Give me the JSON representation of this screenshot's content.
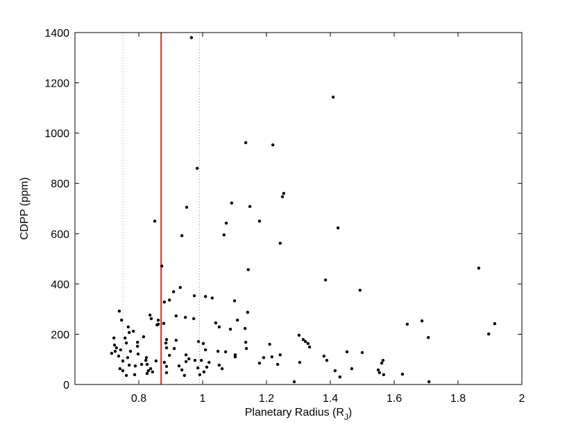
{
  "chart_data": {
    "type": "scatter",
    "xlabel": {
      "text": "Planetary Radius (R",
      "subscript": "J",
      "suffix": ")"
    },
    "ylabel": "CDPP (ppm)",
    "xlim": [
      0.6,
      2.0
    ],
    "ylim": [
      0,
      1400
    ],
    "xticks": [
      0.8,
      1,
      1.2,
      1.4,
      1.6,
      1.8,
      2
    ],
    "yticks": [
      0,
      200,
      400,
      600,
      800,
      1000,
      1200,
      1400
    ],
    "color": "#000000",
    "vlines": [
      {
        "x": 0.87,
        "color": "#d62728",
        "style": "solid"
      },
      {
        "x": 0.75,
        "color": "#e06060",
        "style": "dotted"
      },
      {
        "x": 0.99,
        "color": "#e06060",
        "style": "dotted"
      }
    ],
    "x": [
      0.965,
      1.409,
      1.135,
      1.22,
      0.983,
      1.091,
      0.95,
      1.148,
      1.074,
      1.178,
      0.85,
      1.254,
      1.25,
      1.424,
      1.067,
      0.935,
      1.243,
      0.872,
      1.143,
      1.385,
      1.865,
      1.493,
      0.93,
      0.909,
      0.896,
      0.88,
      0.974,
      1.009,
      1.03,
      1.1,
      1.141,
      0.917,
      0.946,
      0.972,
      1.041,
      0.861,
      0.878,
      0.835,
      0.839,
      0.857,
      1.133,
      0.861,
      0.739,
      0.746,
      0.767,
      0.783,
      0.77,
      0.757,
      0.722,
      0.815,
      0.724,
      0.73,
      0.743,
      0.761,
      0.796,
      0.726,
      0.715,
      0.737,
      0.774,
      0.796,
      0.798,
      0.765,
      0.75,
      0.77,
      0.741,
      0.75,
      0.761,
      0.789,
      0.787,
      0.809,
      0.822,
      0.826,
      0.83,
      0.826,
      0.837,
      0.843,
      0.854,
      0.824,
      0.887,
      0.885,
      0.887,
      0.896,
      0.911,
      0.917,
      0.88,
      0.887,
      0.887,
      0.926,
      0.935,
      0.943,
      0.948,
      0.948,
      0.957,
      0.976,
      0.987,
      1.002,
      1.009,
      0.996,
      0.985,
      0.991,
      1.004,
      1.013,
      1.02,
      1.048,
      1.052,
      1.061,
      1.072,
      1.052,
      1.087,
      1.102,
      1.102,
      1.109,
      1.135,
      1.137,
      1.178,
      1.191,
      1.21,
      1.217,
      1.235,
      1.243,
      1.287,
      1.302,
      1.315,
      1.322,
      1.33,
      1.335,
      1.304,
      1.38,
      1.389,
      1.415,
      1.43,
      1.452,
      1.467,
      1.5,
      1.55,
      1.554,
      1.561,
      1.565,
      1.567,
      1.641,
      1.687,
      1.707,
      1.626,
      1.709,
      1.896,
      1.915
    ],
    "values": [
      1380,
      1143,
      962,
      953,
      860,
      722,
      705,
      708,
      642,
      650,
      650,
      760,
      747,
      623,
      595,
      592,
      562,
      471,
      457,
      416,
      463,
      375,
      386,
      369,
      336,
      328,
      353,
      350,
      344,
      333,
      287,
      273,
      267,
      262,
      245,
      256,
      243,
      276,
      262,
      237,
      223,
      240,
      292,
      256,
      229,
      212,
      207,
      185,
      185,
      190,
      157,
      146,
      138,
      165,
      168,
      132,
      124,
      113,
      132,
      152,
      121,
      107,
      94,
      77,
      63,
      55,
      36,
      74,
      39,
      80,
      96,
      80,
      55,
      44,
      63,
      50,
      94,
      107,
      179,
      165,
      146,
      116,
      143,
      176,
      88,
      72,
      47,
      74,
      58,
      36,
      118,
      91,
      102,
      96,
      171,
      163,
      138,
      96,
      66,
      39,
      50,
      69,
      88,
      132,
      77,
      63,
      130,
      229,
      220,
      118,
      110,
      256,
      168,
      143,
      85,
      107,
      160,
      110,
      80,
      118,
      11,
      196,
      179,
      171,
      163,
      149,
      88,
      113,
      96,
      55,
      30,
      130,
      63,
      127,
      58,
      47,
      85,
      96,
      39,
      240,
      253,
      187,
      41,
      11,
      201,
      242
    ]
  }
}
